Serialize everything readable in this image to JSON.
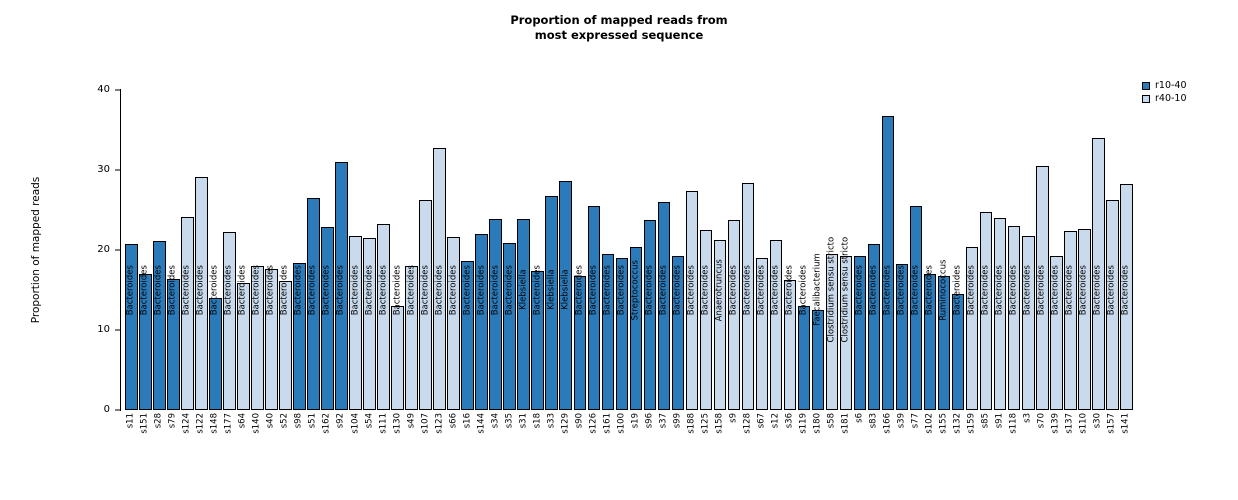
{
  "title": {
    "line1": "Proportion of mapped reads from",
    "line2": "most expressed sequence"
  },
  "y_axis": {
    "label": "Proportion of mapped reads",
    "ticks": [
      0,
      10,
      20,
      30,
      40
    ],
    "max": 40
  },
  "legend": {
    "items": [
      {
        "label": "r10-40",
        "color": "#2b7bba"
      },
      {
        "label": "r40-10",
        "color": "#c9daec"
      }
    ]
  },
  "chart_data": {
    "type": "bar",
    "title": "Proportion of mapped reads from most expressed sequence",
    "xlabel": "",
    "ylabel": "Proportion of mapped reads",
    "ylim": [
      0,
      40
    ],
    "grid": false,
    "legend_position": "top-right",
    "groups": {
      "r10-40": "#2b7bba",
      "r40-10": "#c9daec"
    },
    "bars": [
      {
        "sample": "s11",
        "species": "Bacteroides",
        "value": 20.7,
        "group": "r10-40"
      },
      {
        "sample": "s151",
        "species": "Bacteroides",
        "value": 17.0,
        "group": "r10-40"
      },
      {
        "sample": "s28",
        "species": "Bacteroides",
        "value": 21.1,
        "group": "r10-40"
      },
      {
        "sample": "s79",
        "species": "Bacteroides",
        "value": 16.4,
        "group": "r10-40"
      },
      {
        "sample": "s124",
        "species": "Bacteroides",
        "value": 24.1,
        "group": "r40-10"
      },
      {
        "sample": "s122",
        "species": "Bacteroides",
        "value": 29.1,
        "group": "r40-10"
      },
      {
        "sample": "s148",
        "species": "Bacteroides",
        "value": 14.0,
        "group": "r10-40"
      },
      {
        "sample": "s177",
        "species": "Bacteroides",
        "value": 22.2,
        "group": "r40-10"
      },
      {
        "sample": "s64",
        "species": "Bacteroides",
        "value": 15.9,
        "group": "r40-10"
      },
      {
        "sample": "s140",
        "species": "Bacteroides",
        "value": 18.0,
        "group": "r40-10"
      },
      {
        "sample": "s40",
        "species": "Bacteroides",
        "value": 17.6,
        "group": "r40-10"
      },
      {
        "sample": "s52",
        "species": "Bacteroides",
        "value": 16.1,
        "group": "r40-10"
      },
      {
        "sample": "s98",
        "species": "Bacteroides",
        "value": 18.4,
        "group": "r10-40"
      },
      {
        "sample": "s51",
        "species": "Bacteroides",
        "value": 26.5,
        "group": "r10-40"
      },
      {
        "sample": "s162",
        "species": "Bacteroides",
        "value": 22.9,
        "group": "r10-40"
      },
      {
        "sample": "s92",
        "species": "Bacteroides",
        "value": 31.0,
        "group": "r10-40"
      },
      {
        "sample": "s104",
        "species": "Bacteroides",
        "value": 21.8,
        "group": "r40-10"
      },
      {
        "sample": "s54",
        "species": "Bacteroides",
        "value": 21.5,
        "group": "r40-10"
      },
      {
        "sample": "s111",
        "species": "Bacteroides",
        "value": 23.2,
        "group": "r40-10"
      },
      {
        "sample": "s130",
        "species": "Bacteroides",
        "value": 13.0,
        "group": "r40-10"
      },
      {
        "sample": "s49",
        "species": "Bacteroides",
        "value": 18.0,
        "group": "r40-10"
      },
      {
        "sample": "s107",
        "species": "Bacteroides",
        "value": 26.2,
        "group": "r40-10"
      },
      {
        "sample": "s123",
        "species": "Bacteroides",
        "value": 32.8,
        "group": "r40-10"
      },
      {
        "sample": "s66",
        "species": "Bacteroides",
        "value": 21.6,
        "group": "r40-10"
      },
      {
        "sample": "s16",
        "species": "Bacteroides",
        "value": 18.6,
        "group": "r10-40"
      },
      {
        "sample": "s144",
        "species": "Bacteroides",
        "value": 22.0,
        "group": "r10-40"
      },
      {
        "sample": "s34",
        "species": "Bacteroides",
        "value": 23.9,
        "group": "r10-40"
      },
      {
        "sample": "s35",
        "species": "Bacteroides",
        "value": 20.9,
        "group": "r10-40"
      },
      {
        "sample": "s31",
        "species": "Klebsiella",
        "value": 23.9,
        "group": "r10-40"
      },
      {
        "sample": "s18",
        "species": "Bacteroides",
        "value": 17.4,
        "group": "r10-40"
      },
      {
        "sample": "s33",
        "species": "Klebsiella",
        "value": 26.7,
        "group": "r10-40"
      },
      {
        "sample": "s129",
        "species": "Klebsiella",
        "value": 28.6,
        "group": "r10-40"
      },
      {
        "sample": "s90",
        "species": "Bacteroides",
        "value": 16.8,
        "group": "r10-40"
      },
      {
        "sample": "s126",
        "species": "Bacteroides",
        "value": 25.5,
        "group": "r10-40"
      },
      {
        "sample": "s161",
        "species": "Bacteroides",
        "value": 19.5,
        "group": "r10-40"
      },
      {
        "sample": "s100",
        "species": "Bacteroides",
        "value": 19.0,
        "group": "r10-40"
      },
      {
        "sample": "s19",
        "species": "Streptococcus",
        "value": 20.4,
        "group": "r10-40"
      },
      {
        "sample": "s96",
        "species": "Bacteroides",
        "value": 23.8,
        "group": "r10-40"
      },
      {
        "sample": "s37",
        "species": "Bacteroides",
        "value": 26.0,
        "group": "r10-40"
      },
      {
        "sample": "s99",
        "species": "Bacteroides",
        "value": 19.3,
        "group": "r10-40"
      },
      {
        "sample": "s188",
        "species": "Bacteroides",
        "value": 27.4,
        "group": "r40-10"
      },
      {
        "sample": "s125",
        "species": "Bacteroides",
        "value": 22.5,
        "group": "r40-10"
      },
      {
        "sample": "s158",
        "species": "Anaerotruncus",
        "value": 21.3,
        "group": "r40-10"
      },
      {
        "sample": "s9",
        "species": "Bacteroides",
        "value": 23.8,
        "group": "r40-10"
      },
      {
        "sample": "s128",
        "species": "Bacteroides",
        "value": 28.4,
        "group": "r40-10"
      },
      {
        "sample": "s67",
        "species": "Bacteroides",
        "value": 19.0,
        "group": "r40-10"
      },
      {
        "sample": "s12",
        "species": "Bacteroides",
        "value": 21.2,
        "group": "r40-10"
      },
      {
        "sample": "s36",
        "species": "Bacteroides",
        "value": 16.3,
        "group": "r40-10"
      },
      {
        "sample": "s119",
        "species": "Bacteroides",
        "value": 13.0,
        "group": "r10-40"
      },
      {
        "sample": "s180",
        "species": "Faecalibacterium",
        "value": 12.5,
        "group": "r10-40"
      },
      {
        "sample": "s58",
        "species": "Clostridium sensu stricto",
        "value": 19.5,
        "group": "r40-10"
      },
      {
        "sample": "s181",
        "species": "Clostridium sensu stricto",
        "value": 19.3,
        "group": "r40-10"
      },
      {
        "sample": "s6",
        "species": "Bacteroides",
        "value": 19.3,
        "group": "r10-40"
      },
      {
        "sample": "s83",
        "species": "Bacteroides",
        "value": 20.7,
        "group": "r10-40"
      },
      {
        "sample": "s166",
        "species": "Bacteroides",
        "value": 36.8,
        "group": "r10-40"
      },
      {
        "sample": "s39",
        "species": "Bacteroides",
        "value": 18.2,
        "group": "r10-40"
      },
      {
        "sample": "s77",
        "species": "Bacteroides",
        "value": 25.5,
        "group": "r10-40"
      },
      {
        "sample": "s102",
        "species": "Bacteroides",
        "value": 17.0,
        "group": "r10-40"
      },
      {
        "sample": "s155",
        "species": "Ruminococcus",
        "value": 16.8,
        "group": "r10-40"
      },
      {
        "sample": "s132",
        "species": "Bacteroides",
        "value": 14.5,
        "group": "r10-40"
      },
      {
        "sample": "s159",
        "species": "Bacteroides",
        "value": 20.4,
        "group": "r40-10"
      },
      {
        "sample": "s85",
        "species": "Bacteroides",
        "value": 24.8,
        "group": "r40-10"
      },
      {
        "sample": "s91",
        "species": "Bacteroides",
        "value": 24.0,
        "group": "r40-10"
      },
      {
        "sample": "s118",
        "species": "Bacteroides",
        "value": 23.0,
        "group": "r40-10"
      },
      {
        "sample": "s3",
        "species": "Bacteroides",
        "value": 21.8,
        "group": "r40-10"
      },
      {
        "sample": "s70",
        "species": "Bacteroides",
        "value": 30.5,
        "group": "r40-10"
      },
      {
        "sample": "s139",
        "species": "Bacteroides",
        "value": 19.2,
        "group": "r40-10"
      },
      {
        "sample": "s137",
        "species": "Bacteroides",
        "value": 22.4,
        "group": "r40-10"
      },
      {
        "sample": "s110",
        "species": "Bacteroides",
        "value": 22.6,
        "group": "r40-10"
      },
      {
        "sample": "s30",
        "species": "Bacteroides",
        "value": 34.0,
        "group": "r40-10"
      },
      {
        "sample": "s157",
        "species": "Bacteroides",
        "value": 26.3,
        "group": "r40-10"
      },
      {
        "sample": "s141",
        "species": "Bacteroides",
        "value": 28.3,
        "group": "r40-10"
      }
    ]
  }
}
